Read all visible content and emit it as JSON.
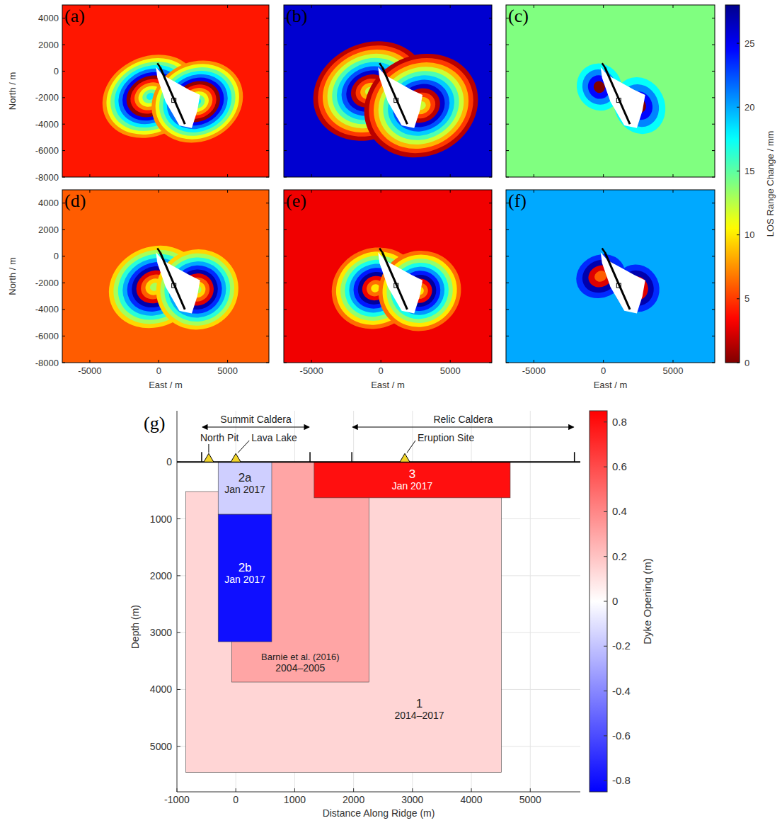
{
  "chart_data": [
    {
      "type": "image",
      "title": "(a)",
      "xlim": [
        -7000,
        8000
      ],
      "ylim": [
        -8000,
        5000
      ],
      "xticks": [
        -5000,
        0,
        5000
      ],
      "yticks": [
        -8000,
        -6000,
        -4000,
        -2000,
        0,
        2000,
        4000
      ],
      "tick_labels": "y",
      "ylabel": "North / m"
    },
    {
      "type": "image",
      "title": "(b)",
      "xlim": [
        -7000,
        8000
      ],
      "ylim": [
        -8000,
        5000
      ],
      "xticks": [
        -5000,
        0,
        5000
      ],
      "yticks": [
        -8000,
        -6000,
        -4000,
        -2000,
        0,
        2000,
        4000
      ],
      "tick_labels": false
    },
    {
      "type": "image",
      "title": "(c)",
      "xlim": [
        -7000,
        8000
      ],
      "ylim": [
        -8000,
        5000
      ],
      "xticks": [
        -5000,
        0,
        5000
      ],
      "yticks": [
        -8000,
        -6000,
        -4000,
        -2000,
        0,
        2000,
        4000
      ],
      "tick_labels": false,
      "colorbar": {
        "label": "LOS Range Change / mm",
        "range": [
          0,
          28
        ],
        "ticks": [
          0,
          5,
          10,
          15,
          20,
          25
        ]
      }
    },
    {
      "type": "image",
      "title": "(d)",
      "xlim": [
        -7000,
        8000
      ],
      "ylim": [
        -8000,
        5000
      ],
      "xticks": [
        -5000,
        0,
        5000
      ],
      "yticks": [
        -8000,
        -6000,
        -4000,
        -2000,
        0,
        2000,
        4000
      ],
      "tick_labels": true,
      "xlabel": "East / m",
      "ylabel": "North / m"
    },
    {
      "type": "image",
      "title": "(e)",
      "xlim": [
        -7000,
        8000
      ],
      "ylim": [
        -8000,
        5000
      ],
      "xticks": [
        -5000,
        0,
        5000
      ],
      "yticks": [
        -8000,
        -6000,
        -4000,
        -2000,
        0,
        2000,
        4000
      ],
      "tick_labels": "x",
      "xlabel": "East / m"
    },
    {
      "type": "image",
      "title": "(f)",
      "xlim": [
        -7000,
        8000
      ],
      "ylim": [
        -8000,
        5000
      ],
      "xticks": [
        -5000,
        0,
        5000
      ],
      "yticks": [
        -8000,
        -6000,
        -4000,
        -2000,
        0,
        2000,
        4000
      ],
      "tick_labels": "x",
      "xlabel": "East / m"
    },
    {
      "type": "rectangle",
      "title": "(g)",
      "xlabel": "Distance Along Ridge (m)",
      "ylabel": "Depth (m)",
      "xlim": [
        -1000,
        5850
      ],
      "ylim": [
        -900,
        5800
      ],
      "xticks": [
        -1000,
        0,
        1000,
        2000,
        3000,
        4000,
        5000
      ],
      "yticks": [
        0,
        1000,
        2000,
        3000,
        4000,
        5000
      ],
      "grid": true,
      "dykes": [
        {
          "label": "1",
          "period": "2014–2017",
          "x": [
            -850,
            4510
          ],
          "depth": [
            520,
            5460
          ],
          "opening": 0.14
        },
        {
          "label": "Barnie et al. (2016)",
          "period": "2004–2005",
          "x": [
            -70,
            2260
          ],
          "depth": [
            0,
            3870
          ],
          "opening": 0.3
        },
        {
          "label": "2a",
          "period": "Jan 2017",
          "x": [
            -300,
            610
          ],
          "depth": [
            0,
            920
          ],
          "opening": -0.16
        },
        {
          "label": "2b",
          "period": "Jan 2017",
          "x": [
            -300,
            610
          ],
          "depth": [
            920,
            3160
          ],
          "opening": -0.8
        },
        {
          "label": "3",
          "period": "Jan 2017",
          "x": [
            1330,
            4660
          ],
          "depth": [
            0,
            630
          ],
          "opening": 0.8
        }
      ],
      "calderas": [
        {
          "label": "Summit Caldera",
          "x": [
            -580,
            1260
          ]
        },
        {
          "label": "Relic Caldera",
          "x": [
            1970,
            5750
          ]
        }
      ],
      "features": [
        {
          "label": "North Pit",
          "x": -460
        },
        {
          "label": "Lava Lake",
          "x": 0
        },
        {
          "label": "Eruption Site",
          "x": 2870
        }
      ],
      "colorbar": {
        "label": "Dyke Opening (m)",
        "range": [
          -0.85,
          0.85
        ],
        "ticks": [
          -0.8,
          -0.6,
          -0.4,
          -0.2,
          0,
          0.2,
          0.4,
          0.6,
          0.8
        ]
      }
    }
  ]
}
